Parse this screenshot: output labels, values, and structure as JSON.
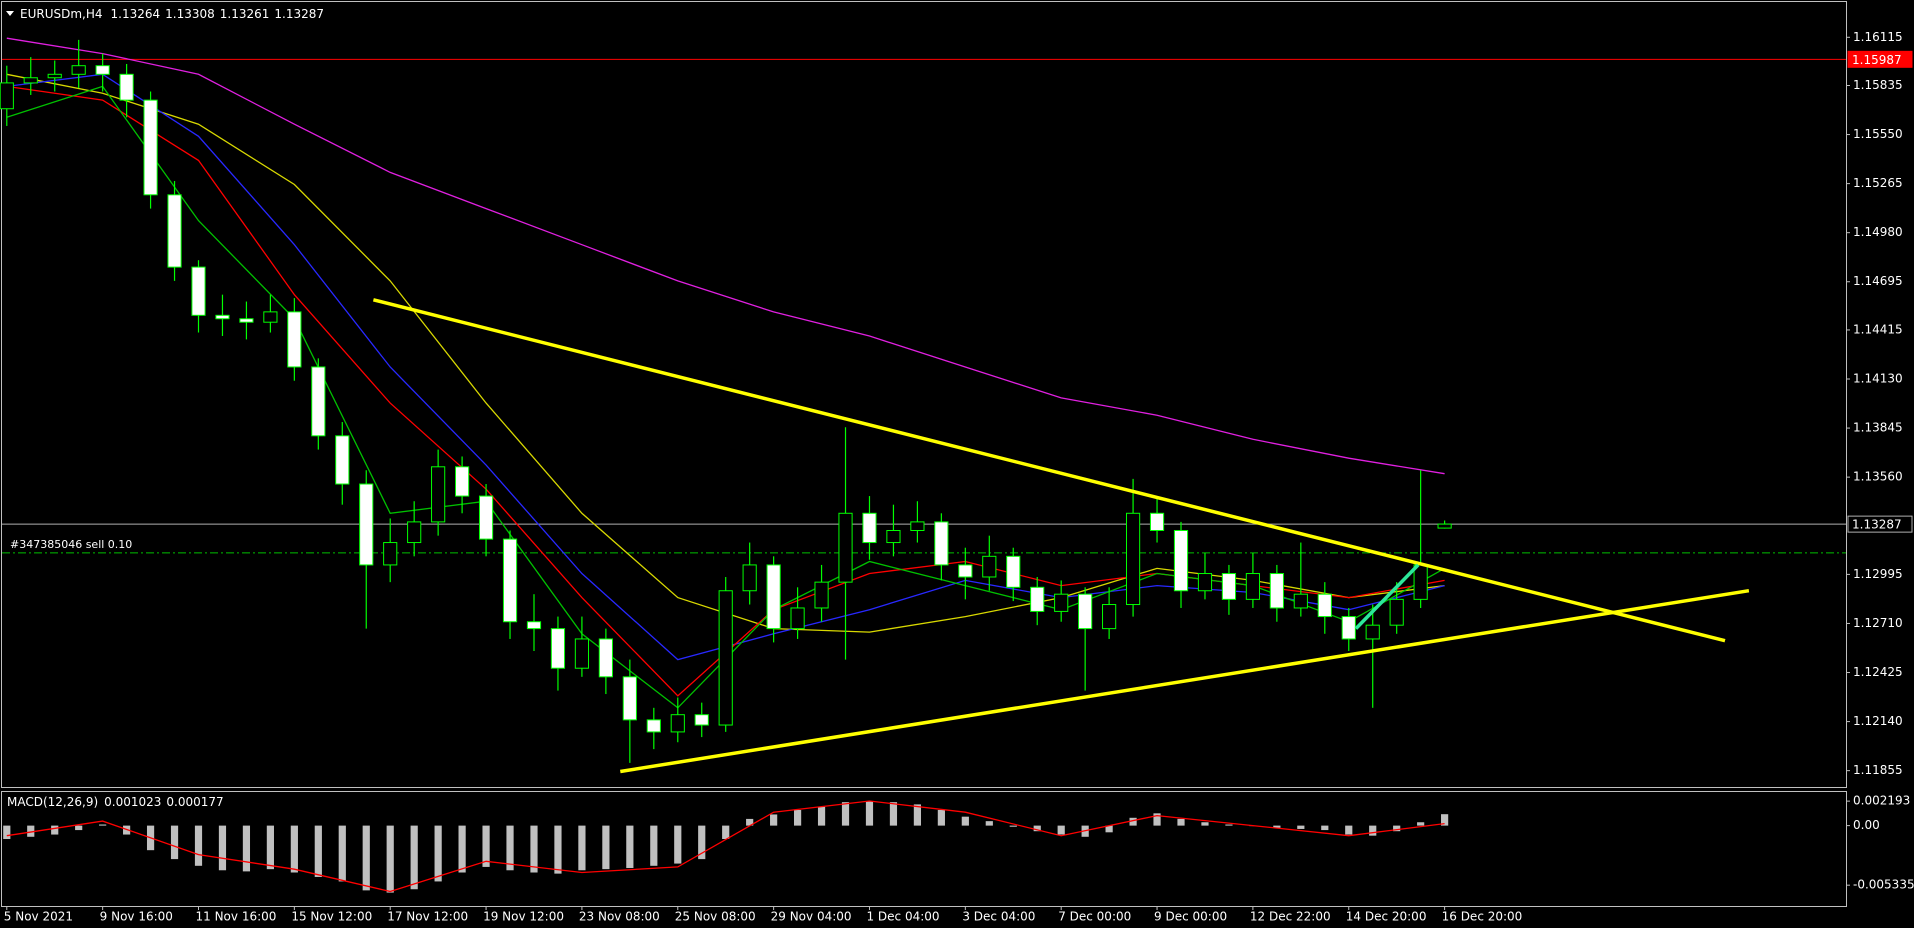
{
  "chart_data": [
    {
      "type": "candlestick",
      "title": "EURUSDm,H4",
      "open": [
        1.157,
        1.1585,
        1.1588,
        1.159,
        1.1595,
        1.159,
        1.1575,
        1.152,
        1.1478,
        1.145,
        1.1448,
        1.1446,
        1.1452,
        1.142,
        1.138,
        1.1352,
        1.1305,
        1.1318,
        1.133,
        1.1362,
        1.1345,
        1.132,
        1.1272,
        1.1268,
        1.1245,
        1.1262,
        1.124,
        1.1215,
        1.1208,
        1.1218,
        1.1212,
        1.129,
        1.1305,
        1.1268,
        1.128,
        1.1295,
        1.1335,
        1.1318,
        1.1325,
        1.133,
        1.1305,
        1.1298,
        1.131,
        1.1292,
        1.1278,
        1.1288,
        1.1268,
        1.1282,
        1.1335,
        1.1325,
        1.129,
        1.13,
        1.1285,
        1.13,
        1.128,
        1.1288,
        1.1275,
        1.1262,
        1.127,
        1.1285,
        1.13264
      ],
      "high": [
        1.1595,
        1.16,
        1.1598,
        1.161,
        1.1602,
        1.1596,
        1.158,
        1.1528,
        1.1482,
        1.1462,
        1.1458,
        1.1462,
        1.146,
        1.1425,
        1.1388,
        1.136,
        1.1332,
        1.1342,
        1.1372,
        1.1368,
        1.1352,
        1.1325,
        1.1288,
        1.1275,
        1.1275,
        1.1268,
        1.125,
        1.1222,
        1.1228,
        1.1225,
        1.1298,
        1.1318,
        1.131,
        1.1292,
        1.1305,
        1.1385,
        1.1345,
        1.134,
        1.1342,
        1.1335,
        1.1315,
        1.1322,
        1.1315,
        1.1298,
        1.1296,
        1.1292,
        1.1292,
        1.1355,
        1.1345,
        1.133,
        1.1312,
        1.1305,
        1.1312,
        1.1305,
        1.1318,
        1.1295,
        1.128,
        1.1282,
        1.1295,
        1.136,
        1.13308
      ],
      "low": [
        1.156,
        1.1578,
        1.158,
        1.1582,
        1.158,
        1.1565,
        1.1512,
        1.147,
        1.144,
        1.1438,
        1.1436,
        1.144,
        1.1412,
        1.1372,
        1.134,
        1.1268,
        1.1295,
        1.131,
        1.1322,
        1.1335,
        1.131,
        1.1262,
        1.1255,
        1.1232,
        1.124,
        1.123,
        1.119,
        1.1198,
        1.1202,
        1.1205,
        1.1208,
        1.1282,
        1.126,
        1.1262,
        1.1272,
        1.125,
        1.1308,
        1.131,
        1.1318,
        1.1296,
        1.1285,
        1.129,
        1.1284,
        1.127,
        1.1272,
        1.1232,
        1.1262,
        1.1275,
        1.1318,
        1.128,
        1.1285,
        1.1276,
        1.128,
        1.1272,
        1.1275,
        1.1265,
        1.1255,
        1.1222,
        1.1265,
        1.128,
        1.13261
      ],
      "close": [
        1.1585,
        1.1588,
        1.159,
        1.1595,
        1.159,
        1.1575,
        1.152,
        1.1478,
        1.145,
        1.1448,
        1.1446,
        1.1452,
        1.142,
        1.138,
        1.1352,
        1.1305,
        1.1318,
        1.133,
        1.1362,
        1.1345,
        1.132,
        1.1272,
        1.1268,
        1.1245,
        1.1262,
        1.124,
        1.1215,
        1.1208,
        1.1218,
        1.1212,
        1.129,
        1.1305,
        1.1268,
        1.128,
        1.1295,
        1.1335,
        1.1318,
        1.1325,
        1.133,
        1.1305,
        1.1298,
        1.131,
        1.1292,
        1.1278,
        1.1288,
        1.1268,
        1.1282,
        1.1335,
        1.1325,
        1.129,
        1.13,
        1.1285,
        1.13,
        1.128,
        1.1288,
        1.1275,
        1.1262,
        1.127,
        1.1285,
        1.1305,
        1.13287
      ],
      "up_color": "#000000",
      "down_color": "#ffffff",
      "wick_color": "#00ff00",
      "xlim": [
        -0.2,
        76.75
      ],
      "ylim": [
        1.1176,
        1.1632
      ],
      "yticks": [
        1.16115,
        1.15835,
        {
          "value": 1.1555,
          "label": "1.15550"
        },
        1.15265,
        {
          "value": 1.1498,
          "label": "1.14980"
        },
        1.14695,
        1.14415,
        {
          "value": 1.1413,
          "label": "1.14130"
        },
        1.13845,
        {
          "value": 1.1356,
          "label": "1.13560"
        },
        1.12995,
        {
          "value": 1.1271,
          "label": "1.12710"
        },
        1.12425,
        {
          "value": 1.1214,
          "label": "1.12140"
        },
        1.11855
      ],
      "level": 1.15987,
      "level_color": "#ff0000",
      "bid": 1.13287,
      "bid_color": "#b0b0b0",
      "order": {
        "label": "#347385046 sell 0.10",
        "value": 1.1312,
        "color": "#00c000"
      },
      "overlays": [
        {
          "color": "#e020e0",
          "x": [
            0,
            4,
            8,
            12,
            16,
            20,
            24,
            28,
            32,
            36,
            40,
            44,
            48,
            52,
            56,
            60
          ],
          "values": [
            1.1611,
            1.1602,
            1.159,
            1.1561,
            1.1533,
            1.1512,
            1.1491,
            1.147,
            1.1452,
            1.1438,
            1.142,
            1.1402,
            1.1392,
            1.1378,
            1.1367,
            1.1358
          ]
        },
        {
          "color": "#d8d800",
          "x": [
            0,
            4,
            8,
            12,
            16,
            20,
            24,
            28,
            32,
            36,
            40,
            44,
            48,
            52,
            56,
            60
          ],
          "values": [
            1.159,
            1.1579,
            1.1561,
            1.1526,
            1.147,
            1.1399,
            1.1335,
            1.1286,
            1.1268,
            1.1266,
            1.1275,
            1.1286,
            1.1303,
            1.1296,
            1.1286,
            1.1293
          ]
        },
        {
          "color": "#2828ff",
          "x": [
            0,
            4,
            8,
            12,
            16,
            20,
            24,
            28,
            32,
            36,
            40,
            44,
            48,
            52,
            56,
            60
          ],
          "values": [
            1.1583,
            1.159,
            1.1554,
            1.1491,
            1.142,
            1.1363,
            1.13,
            1.125,
            1.1265,
            1.1279,
            1.1296,
            1.1286,
            1.1293,
            1.1289,
            1.1279,
            1.1293
          ]
        },
        {
          "color": "#ff0000",
          "x": [
            0,
            4,
            8,
            12,
            16,
            20,
            24,
            28,
            32,
            36,
            40,
            44,
            48,
            52,
            56,
            60
          ],
          "values": [
            1.1583,
            1.1575,
            1.154,
            1.1462,
            1.1399,
            1.1349,
            1.1286,
            1.1229,
            1.1279,
            1.13,
            1.1307,
            1.1293,
            1.13,
            1.1293,
            1.1286,
            1.1296
          ]
        },
        {
          "color": "#00c000",
          "x": [
            0,
            4,
            8,
            12,
            16,
            20,
            24,
            28,
            32,
            36,
            40,
            44,
            48,
            52,
            56,
            60
          ],
          "values": [
            1.1565,
            1.1583,
            1.1505,
            1.1448,
            1.1335,
            1.1342,
            1.1265,
            1.1222,
            1.1279,
            1.1307,
            1.1293,
            1.1279,
            1.13,
            1.1293,
            1.1272,
            1.1303
          ]
        }
      ],
      "trendlines": [
        {
          "color": "#ffff00",
          "x": [
            15.3,
            71.7
          ],
          "values": [
            1.1459,
            1.1261
          ]
        },
        {
          "color": "#ffff00",
          "x": [
            25.6,
            72.7
          ],
          "values": [
            1.1185,
            1.129
          ]
        },
        {
          "color": "#2de89a",
          "x": [
            56.3,
            58.9
          ],
          "values": [
            1.1268,
            1.1305
          ]
        }
      ]
    },
    {
      "type": "macd",
      "title": "MACD(12,26,9)",
      "values": [
        -0.0012,
        -0.001,
        -0.0008,
        -0.0004,
        0.0001,
        -0.0008,
        -0.0022,
        -0.003,
        -0.0036,
        -0.004,
        -0.0041,
        -0.0039,
        -0.0042,
        -0.0046,
        -0.005,
        -0.0058,
        -0.006,
        -0.0057,
        -0.005,
        -0.0042,
        -0.0037,
        -0.004,
        -0.0042,
        -0.0043,
        -0.004,
        -0.0039,
        -0.0038,
        -0.0036,
        -0.0034,
        -0.003,
        -0.0012,
        0.0006,
        0.001,
        0.0014,
        0.0017,
        0.0021,
        0.0022,
        0.0021,
        0.0019,
        0.0014,
        0.0008,
        0.0004,
        -0.0001,
        -0.0005,
        -0.0008,
        -0.001,
        -0.0006,
        0.0007,
        0.0011,
        0.0006,
        0.0003,
        0.0001,
        0,
        -0.0002,
        -0.0003,
        -0.0004,
        -0.0008,
        -0.0009,
        -0.0005,
        0.0003,
        0.001023
      ],
      "color": "#c0c0c0",
      "signal": {
        "color": "#ff0000",
        "x": [
          0,
          4,
          8,
          12,
          16,
          20,
          24,
          28,
          32,
          36,
          40,
          44,
          48,
          52,
          56,
          60
        ],
        "values": [
          -0.0009,
          0.0004,
          -0.0026,
          -0.0039,
          -0.0059,
          -0.0032,
          -0.0042,
          -0.0037,
          0.0012,
          0.0022,
          0.0012,
          -0.0009,
          0.0009,
          0,
          -0.0009,
          0.000177
        ]
      },
      "xlim": [
        -0.2,
        76.75
      ],
      "ylim": [
        -0.0072,
        0.0031
      ],
      "yticks": [
        0.002193,
        {
          "value": 0,
          "label": "0.00"
        },
        -0.005335
      ],
      "xticks": [
        {
          "value": 0,
          "label": "5 Nov 2021"
        },
        {
          "value": 4,
          "label": "9 Nov 16:00"
        },
        {
          "value": 8,
          "label": "11 Nov 16:00"
        },
        {
          "value": 12,
          "label": "15 Nov 12:00"
        },
        {
          "value": 16,
          "label": "17 Nov 12:00"
        },
        {
          "value": 20,
          "label": "19 Nov 12:00"
        },
        {
          "value": 24,
          "label": "23 Nov 08:00"
        },
        {
          "value": 28,
          "label": "25 Nov 08:00"
        },
        {
          "value": 32,
          "label": "29 Nov 04:00"
        },
        {
          "value": 36,
          "label": "1 Dec 04:00"
        },
        {
          "value": 40,
          "label": "3 Dec 04:00"
        },
        {
          "value": 44,
          "label": "7 Dec 00:00"
        },
        {
          "value": 48,
          "label": "9 Dec 00:00"
        },
        {
          "value": 52,
          "label": "12 Dec 22:00"
        },
        {
          "value": 56,
          "label": "14 Dec 20:00"
        },
        {
          "value": 60,
          "label": "16 Dec 20:00"
        }
      ]
    }
  ]
}
